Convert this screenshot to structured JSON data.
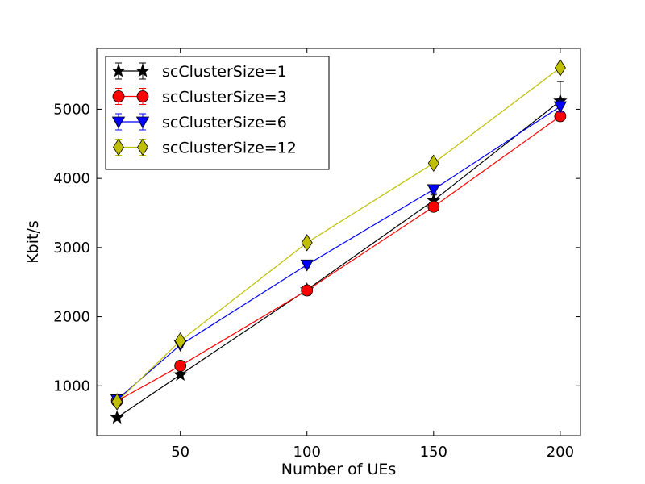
{
  "chart_data": {
    "type": "line",
    "title": "",
    "xlabel": "Number of UEs",
    "ylabel": "Kbit/s",
    "xlim": [
      17,
      208
    ],
    "ylim": [
      280,
      5880
    ],
    "xticks": [
      50,
      100,
      150,
      200
    ],
    "yticks": [
      1000,
      2000,
      3000,
      4000,
      5000
    ],
    "grid": false,
    "legend_position": "top-left",
    "x": [
      25,
      50,
      100,
      150,
      200
    ],
    "series": [
      {
        "name": "scClusterSize=1",
        "values": [
          540,
          1160,
          2390,
          3680,
          5120
        ],
        "errors": [
          30,
          40,
          50,
          80,
          280
        ],
        "color": "#000000",
        "marker": "star"
      },
      {
        "name": "scClusterSize=3",
        "values": [
          780,
          1290,
          2380,
          3590,
          4900
        ],
        "errors": [
          30,
          40,
          40,
          40,
          60
        ],
        "color": "#ff0000",
        "marker": "circle"
      },
      {
        "name": "scClusterSize=6",
        "values": [
          800,
          1590,
          2750,
          3840,
          5040
        ],
        "errors": [
          30,
          40,
          40,
          50,
          80
        ],
        "color": "#0000ff",
        "marker": "triangle-down"
      },
      {
        "name": "scClusterSize=12",
        "values": [
          770,
          1650,
          3070,
          4220,
          5600
        ],
        "errors": [
          30,
          40,
          40,
          40,
          60
        ],
        "color": "#bfbf00",
        "marker": "diamond"
      }
    ]
  }
}
